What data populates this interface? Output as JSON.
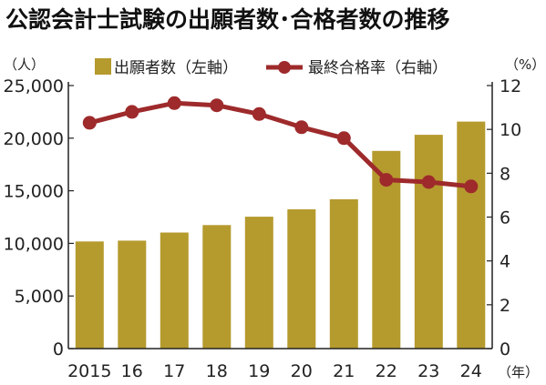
{
  "chart_data": {
    "type": "bar+line",
    "title": "公認会計士試験の出願者数･合格者数の推移",
    "left_unit": "（人）",
    "right_unit": "（%）",
    "x_unit": "（年）",
    "categories": [
      "2015",
      "16",
      "17",
      "18",
      "19",
      "20",
      "21",
      "22",
      "23",
      "24"
    ],
    "left_axis": {
      "min": 0,
      "max": 25000,
      "ticks": [
        "0",
        "5,000",
        "10,000",
        "15,000",
        "20,000",
        "25,000"
      ]
    },
    "right_axis": {
      "min": 0,
      "max": 12,
      "ticks": [
        "0",
        "2",
        "4",
        "6",
        "8",
        "10",
        "12"
      ]
    },
    "series": [
      {
        "name": "出願者数（左軸）",
        "type": "bar",
        "axis": "left",
        "color": "#b59a2e",
        "values": [
          10180,
          10256,
          11032,
          11742,
          12532,
          13231,
          14192,
          18789,
          20317,
          21573
        ]
      },
      {
        "name": "最終合格率（右軸）",
        "type": "line",
        "axis": "right",
        "color": "#9e2a2b",
        "values": [
          10.3,
          10.8,
          11.2,
          11.1,
          10.7,
          10.1,
          9.6,
          7.7,
          7.6,
          7.4
        ]
      }
    ],
    "grid": false,
    "legend_position": "top"
  }
}
